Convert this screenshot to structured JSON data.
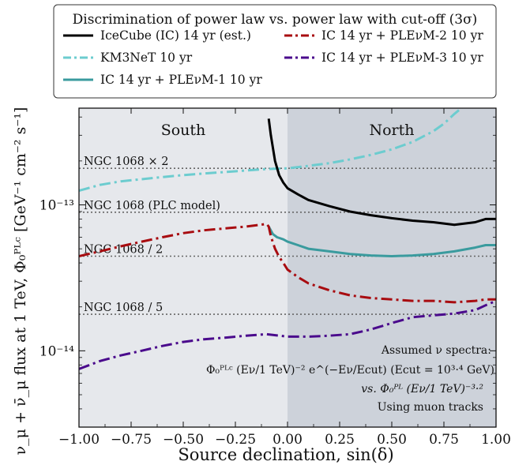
{
  "chart_data": {
    "type": "line",
    "xlabel": "Source declination, sin(δ)",
    "ylabel": "ν_μ + ν̄_μ flux at 1 TeV, Φ₀ᴾᴸᶜ [GeV⁻¹ cm⁻² s⁻¹]",
    "xlim": [
      -1.0,
      1.0
    ],
    "ylim": [
      3e-15,
      4.6e-13
    ],
    "y_scale": "log",
    "x_ticks": [
      "−1.00",
      "−0.75",
      "−0.50",
      "−0.25",
      "0.00",
      "0.25",
      "0.50",
      "0.75",
      "1.00"
    ],
    "x_tick_values": [
      -1.0,
      -0.75,
      -0.5,
      -0.25,
      0.0,
      0.25,
      0.5,
      0.75,
      1.0
    ],
    "y_ticks": [
      "10⁻¹³",
      "10⁻¹⁴"
    ],
    "y_tick_values": [
      1e-13,
      1e-14
    ],
    "grid": false,
    "regions": [
      {
        "label": "South",
        "x": [
          -1.0,
          0.0
        ],
        "color": "#e6e8ec"
      },
      {
        "label": "North",
        "x": [
          0.0,
          1.0
        ],
        "color": "#cdd2da"
      }
    ],
    "legend": {
      "title": "Discrimination of power law vs. power law with cut-off (3σ)",
      "placement": "top-center"
    },
    "reference_lines": [
      {
        "label": "NGC 1068 × 2",
        "y": 1.78e-13
      },
      {
        "label": "NGC 1068 (PLC model)",
        "y": 8.9e-14
      },
      {
        "label": "NGC 1068 / 2",
        "y": 4.45e-14
      },
      {
        "label": "NGC 1068 / 5",
        "y": 1.78e-14
      }
    ],
    "annotation": {
      "line1": "Assumed ν spectra:",
      "line2": "Φ₀ᴾᴸᶜ (Eν/1 TeV)⁻² e^(−Eν/Ecut) (Ecut = 10³·⁴ GeV)",
      "line3": "vs. Φ₀ᴾᴸ (Eν/1 TeV)⁻³·²",
      "line4": "Using muon tracks"
    },
    "series": [
      {
        "name": "IceCube (IC) 14 yr (est.)",
        "color": "#000000",
        "dash": "solid",
        "width": 3,
        "x": [
          -0.09,
          -0.08,
          -0.06,
          -0.04,
          -0.02,
          0.0,
          0.05,
          0.1,
          0.2,
          0.3,
          0.4,
          0.5,
          0.6,
          0.7,
          0.8,
          0.9,
          0.95,
          1.0
        ],
        "y": [
          3.9e-13,
          3e-13,
          2e-13,
          1.6e-13,
          1.42e-13,
          1.3e-13,
          1.18e-13,
          1.08e-13,
          9.8e-14,
          9e-14,
          8.5e-14,
          8.1e-14,
          7.8e-14,
          7.6e-14,
          7.3e-14,
          7.6e-14,
          8e-14,
          8e-14
        ]
      },
      {
        "name": "KM3NeT 10 yr",
        "color": "#6ccccf",
        "dash": "dashdot",
        "width": 3,
        "x": [
          -1.0,
          -0.9,
          -0.8,
          -0.7,
          -0.6,
          -0.5,
          -0.4,
          -0.3,
          -0.2,
          -0.1,
          0.0,
          0.1,
          0.2,
          0.3,
          0.4,
          0.5,
          0.6,
          0.7,
          0.75,
          0.8,
          0.85
        ],
        "y": [
          1.25e-13,
          1.37e-13,
          1.45e-13,
          1.5e-13,
          1.55e-13,
          1.6e-13,
          1.64e-13,
          1.68e-13,
          1.72e-13,
          1.76e-13,
          1.78e-13,
          1.85e-13,
          1.93e-13,
          2.05e-13,
          2.2e-13,
          2.4e-13,
          2.7e-13,
          3.2e-13,
          3.6e-13,
          4.2e-13,
          4.8e-13
        ]
      },
      {
        "name": "IC 14 yr + PLEνM-1 10 yr",
        "color": "#3a9b9e",
        "dash": "solid",
        "width": 3,
        "x": [
          -0.09,
          -0.07,
          -0.05,
          -0.02,
          0.0,
          0.05,
          0.1,
          0.2,
          0.3,
          0.4,
          0.5,
          0.6,
          0.7,
          0.8,
          0.9,
          0.95,
          1.0
        ],
        "y": [
          7.1e-14,
          6.3e-14,
          6e-14,
          5.8e-14,
          5.6e-14,
          5.3e-14,
          5e-14,
          4.8e-14,
          4.6e-14,
          4.5e-14,
          4.45e-14,
          4.5e-14,
          4.6e-14,
          4.8e-14,
          5.1e-14,
          5.3e-14,
          5.3e-14
        ]
      },
      {
        "name": "IC 14 yr + PLEνM-2 10 yr",
        "color": "#a80c10",
        "dash": "dashdot",
        "width": 3,
        "x": [
          -1.0,
          -0.9,
          -0.8,
          -0.7,
          -0.6,
          -0.5,
          -0.4,
          -0.3,
          -0.2,
          -0.1,
          -0.09,
          -0.08,
          -0.06,
          -0.04,
          -0.02,
          0.0,
          0.05,
          0.1,
          0.2,
          0.3,
          0.4,
          0.5,
          0.6,
          0.7,
          0.8,
          0.9,
          0.95,
          1.0
        ],
        "y": [
          4.45e-14,
          4.8e-14,
          5.2e-14,
          5.6e-14,
          6e-14,
          6.4e-14,
          6.7e-14,
          6.9e-14,
          7.1e-14,
          7.4e-14,
          7.1e-14,
          6.1e-14,
          5e-14,
          4.4e-14,
          4e-14,
          3.6e-14,
          3.2e-14,
          2.9e-14,
          2.6e-14,
          2.4e-14,
          2.3e-14,
          2.25e-14,
          2.2e-14,
          2.2e-14,
          2.15e-14,
          2.2e-14,
          2.25e-14,
          2.25e-14
        ]
      },
      {
        "name": "IC 14 yr + PLEνM-3 10 yr",
        "color": "#4a0a8c",
        "dash": "dashdot",
        "width": 3,
        "x": [
          -1.0,
          -0.9,
          -0.8,
          -0.7,
          -0.6,
          -0.5,
          -0.4,
          -0.3,
          -0.2,
          -0.1,
          0.0,
          0.1,
          0.2,
          0.3,
          0.4,
          0.5,
          0.6,
          0.7,
          0.8,
          0.9,
          0.95,
          1.0
        ],
        "y": [
          7.5e-15,
          8.5e-15,
          9.3e-15,
          1e-14,
          1.08e-14,
          1.15e-14,
          1.2e-14,
          1.23e-14,
          1.27e-14,
          1.3e-14,
          1.25e-14,
          1.25e-14,
          1.27e-14,
          1.3e-14,
          1.4e-14,
          1.55e-14,
          1.7e-14,
          1.75e-14,
          1.8e-14,
          1.9e-14,
          2.05e-14,
          2.2e-14
        ]
      }
    ]
  }
}
